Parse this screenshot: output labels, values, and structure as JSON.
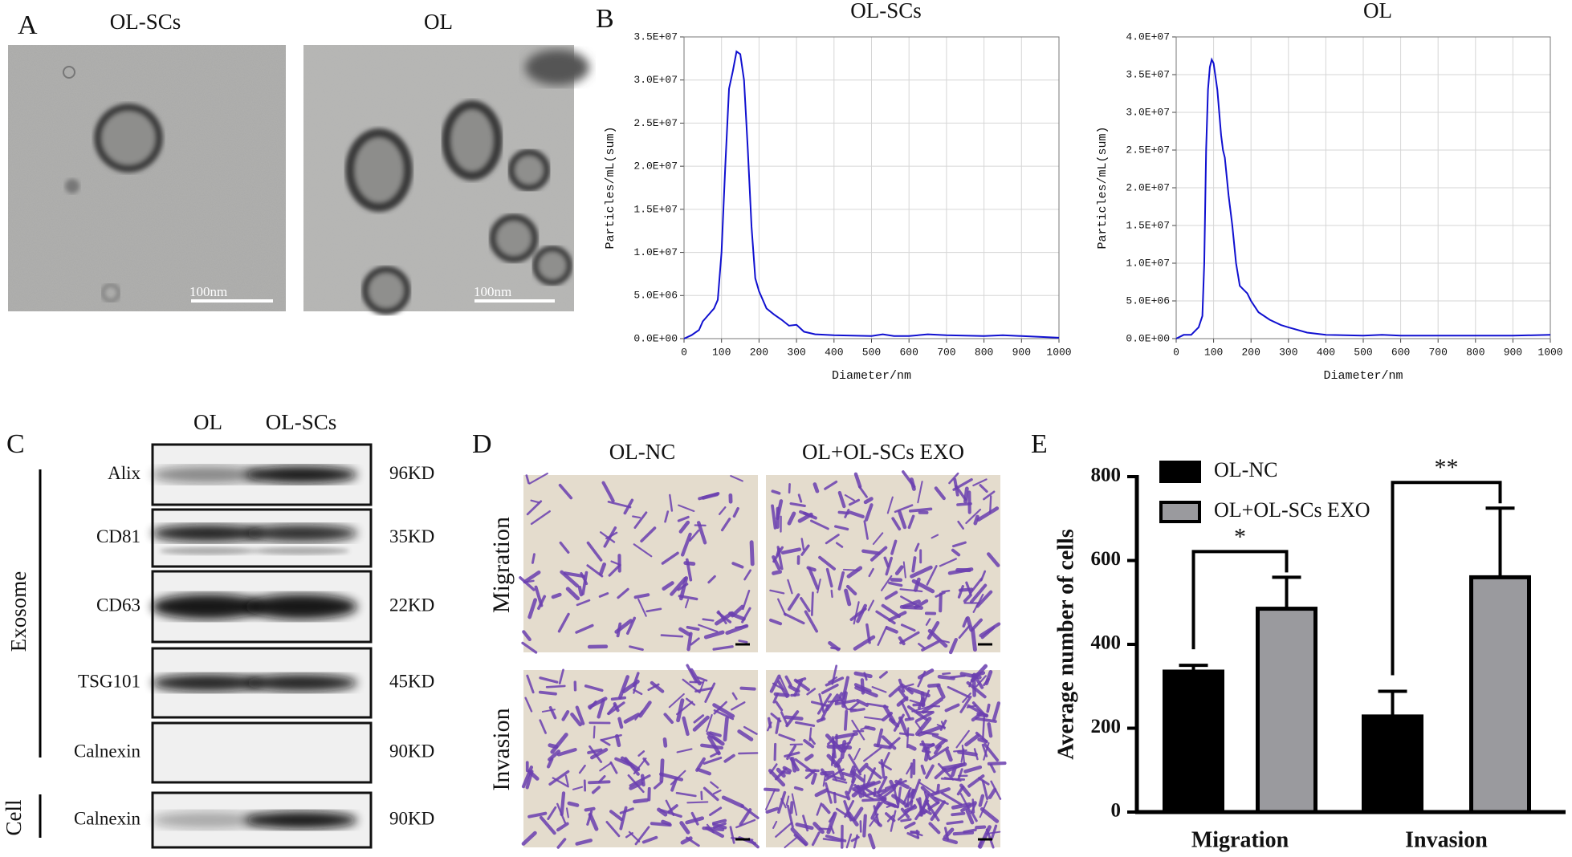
{
  "panel_labels": [
    "A",
    "B",
    "C",
    "D",
    "E"
  ],
  "tem": {
    "titles": [
      "OL-SCs",
      "OL"
    ],
    "scale_bar": "100nm"
  },
  "western_blot": {
    "columns": [
      "OL",
      "OL-SCs"
    ],
    "rows": [
      {
        "label": "Alix",
        "size": "96KD"
      },
      {
        "label": "CD81",
        "size": "35KD"
      },
      {
        "label": "CD63",
        "size": "22KD"
      },
      {
        "label": "TSG101",
        "size": "45KD"
      },
      {
        "label": "Calnexin",
        "size": "90KD"
      },
      {
        "label": "Calnexin",
        "size": "90KD"
      }
    ],
    "groups": [
      "Exosome",
      "Cell"
    ]
  },
  "transwell": {
    "columns": [
      "OL-NC",
      "OL+OL-SCs EXO"
    ],
    "rows": [
      "Migration",
      "Invasion"
    ]
  },
  "chart_data": [
    {
      "type": "line",
      "title": "OL-SCs",
      "xlabel": "Diameter/nm",
      "ylabel": "Particles/mL(sum)",
      "color": "#1010d0",
      "grid": true,
      "x": [
        0,
        20,
        40,
        50,
        60,
        70,
        80,
        90,
        100,
        110,
        120,
        130,
        140,
        150,
        160,
        170,
        180,
        190,
        200,
        220,
        240,
        260,
        280,
        300,
        320,
        350,
        400,
        500,
        530,
        560,
        600,
        650,
        700,
        800,
        850,
        900,
        1000
      ],
      "values": [
        0,
        400000,
        1000000,
        2000000,
        2500000,
        3000000,
        3500000,
        4500000,
        10000000,
        20000000,
        29000000,
        31000000,
        33300000,
        33000000,
        30000000,
        22000000,
        13000000,
        7000000,
        5500000,
        3500000,
        2800000,
        2200000,
        1500000,
        1600000,
        800000,
        500000,
        400000,
        300000,
        500000,
        300000,
        300000,
        500000,
        400000,
        300000,
        400000,
        300000,
        100000
      ],
      "xlim": [
        0,
        1000
      ],
      "xticks": [
        0,
        100,
        200,
        300,
        400,
        500,
        600,
        700,
        800,
        900,
        1000
      ],
      "ylim": [
        0,
        35000000
      ],
      "yticks": [
        {
          "value": 0,
          "label": "0.0E+00"
        },
        {
          "value": 5000000,
          "label": "5.0E+06"
        },
        {
          "value": 10000000,
          "label": "1.0E+07"
        },
        {
          "value": 15000000,
          "label": "1.5E+07"
        },
        {
          "value": 20000000,
          "label": "2.0E+07"
        },
        {
          "value": 25000000,
          "label": "2.5E+07"
        },
        {
          "value": 30000000,
          "label": "3.0E+07"
        },
        {
          "value": 35000000,
          "label": "3.5E+07"
        }
      ]
    },
    {
      "type": "line",
      "title": "OL",
      "xlabel": "Diameter/nm",
      "ylabel": "Particles/mL(sum)",
      "color": "#1010d0",
      "grid": true,
      "x": [
        0,
        20,
        40,
        50,
        60,
        70,
        75,
        80,
        85,
        90,
        95,
        100,
        110,
        120,
        125,
        130,
        140,
        150,
        160,
        170,
        180,
        190,
        200,
        220,
        250,
        280,
        300,
        350,
        400,
        500,
        550,
        600,
        700,
        800,
        900,
        1000
      ],
      "values": [
        0,
        500000,
        500000,
        1000000,
        1500000,
        3000000,
        10000000,
        25000000,
        33000000,
        36000000,
        37000000,
        36500000,
        33000000,
        27000000,
        25000000,
        24000000,
        19000000,
        15000000,
        10000000,
        7000000,
        6500000,
        6000000,
        5000000,
        3500000,
        2500000,
        1800000,
        1500000,
        800000,
        500000,
        400000,
        500000,
        400000,
        400000,
        400000,
        400000,
        500000
      ],
      "xlim": [
        0,
        1000
      ],
      "xticks": [
        0,
        100,
        200,
        300,
        400,
        500,
        600,
        700,
        800,
        900,
        1000
      ],
      "ylim": [
        0,
        40000000
      ],
      "yticks": [
        {
          "value": 0,
          "label": "0.0E+00"
        },
        {
          "value": 5000000,
          "label": "5.0E+06"
        },
        {
          "value": 10000000,
          "label": "1.0E+07"
        },
        {
          "value": 15000000,
          "label": "1.5E+07"
        },
        {
          "value": 20000000,
          "label": "2.0E+07"
        },
        {
          "value": 25000000,
          "label": "2.5E+07"
        },
        {
          "value": 30000000,
          "label": "3.0E+07"
        },
        {
          "value": 35000000,
          "label": "3.5E+07"
        },
        {
          "value": 40000000,
          "label": "4.0E+07"
        }
      ]
    },
    {
      "type": "bar",
      "ylabel": "Average number of  cells",
      "categories": [
        "Migration",
        "Invasion"
      ],
      "legend": "upper left",
      "series": [
        {
          "name": "OL-NC",
          "color": "#000000",
          "values": [
            335,
            228
          ],
          "errors": [
            15,
            60
          ]
        },
        {
          "name": "OL+OL-SCs EXO",
          "color": "#9a9a9e",
          "values": [
            485,
            560
          ],
          "errors": [
            75,
            165
          ]
        }
      ],
      "annotations": [
        "*",
        "**"
      ],
      "ylim": [
        0,
        800
      ],
      "yticks": [
        0,
        200,
        400,
        600,
        800
      ]
    }
  ]
}
